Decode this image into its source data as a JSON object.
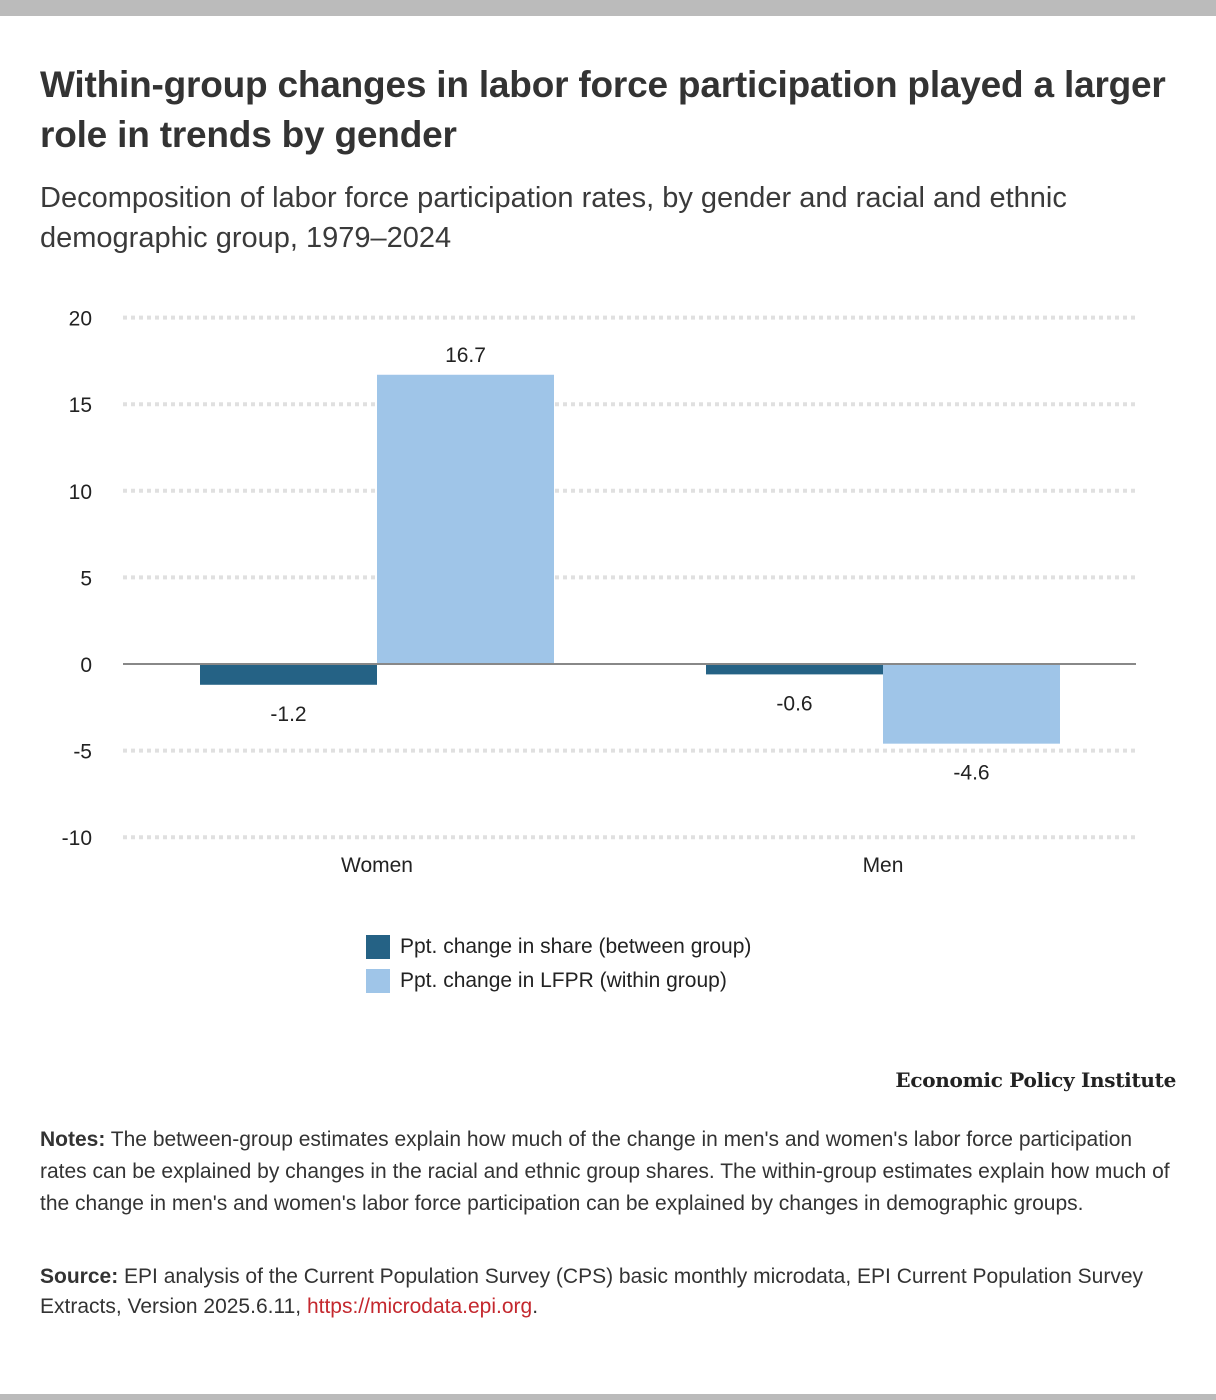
{
  "header": {
    "title": "Within-group changes in labor force participation played a larger role in trends by gender",
    "subtitle": "Decomposition of labor force participation rates, by gender and racial and ethnic demographic group, 1979–2024"
  },
  "chart_data": {
    "type": "bar",
    "categories": [
      "Women",
      "Men"
    ],
    "series": [
      {
        "name": "Ppt. change in share (between group)",
        "values": [
          -1.2,
          -0.6
        ],
        "labels": [
          "-1.2",
          "-0.6"
        ],
        "color": "#256285"
      },
      {
        "name": "Ppt. change in LFPR (within group)",
        "values": [
          16.7,
          -4.6
        ],
        "labels": [
          "16.7",
          "-4.6"
        ],
        "color": "#9fc5e8"
      }
    ],
    "yticks": [
      "20",
      "15",
      "10",
      "5",
      "0",
      "-5",
      "-10"
    ],
    "ytick_values": [
      20,
      15,
      10,
      5,
      0,
      -5,
      -10
    ],
    "ylim": [
      -10,
      20
    ],
    "grid": true,
    "legend_position": "bottom-center",
    "title": "",
    "xlabel": "",
    "ylabel": ""
  },
  "legend": {
    "items": [
      {
        "label": "Ppt. change in share (between group)",
        "color": "#256285"
      },
      {
        "label": "Ppt. change in LFPR (within group)",
        "color": "#9fc5e8"
      }
    ]
  },
  "footer": {
    "brand": "Economic Policy Institute",
    "notes_label": "Notes:",
    "notes_text": " The between-group estimates explain how much of the change in men's and women's labor force participation rates can be explained by changes in the racial and ethnic group shares. The within-group estimates explain how much of the change in men's and women's labor force participation can be explained by changes in demographic groups.",
    "source_label": "Source:",
    "source_text": " EPI analysis of the Current Population Survey (CPS) basic monthly microdata, EPI Current Population Survey Extracts, Version 2025.6.11, ",
    "source_link": "https://microdata.epi.org",
    "source_end": "."
  }
}
